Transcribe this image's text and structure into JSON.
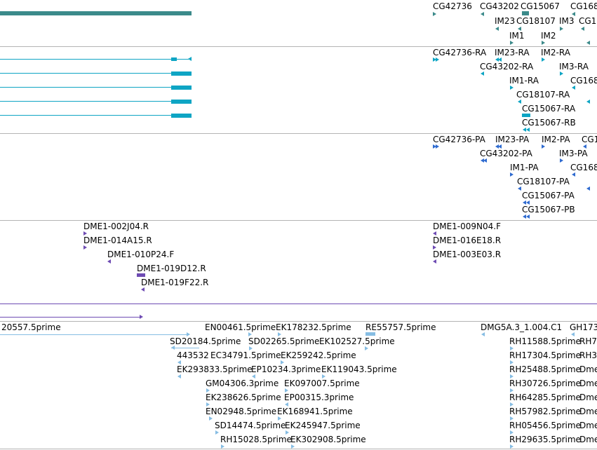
{
  "tracks": {
    "gene_symbols": {
      "labels": [
        "CG42736",
        "CG43202",
        "CG15067",
        "CG168",
        "IM23",
        "CG18107",
        "IM3",
        "CG1",
        "IM1",
        "IM2"
      ]
    },
    "transcripts": {
      "labels": [
        "CG42736-RA",
        "IM23-RA",
        "IM2-RA",
        "CG43202-RA",
        "IM3-RA",
        "IM1-RA",
        "CG168",
        "CG18107-RA",
        "CG15067-RA",
        "CG15067-RB"
      ]
    },
    "proteins": {
      "labels": [
        "CG42736-PA",
        "IM23-PA",
        "IM2-PA",
        "CG1",
        "CG43202-PA",
        "IM3-PA",
        "IM1-PA",
        "CG168",
        "CG18107-PA",
        "CG15067-PA",
        "CG15067-PB"
      ]
    },
    "ests_purple": {
      "labels": [
        "DME1-002J04.R",
        "DME1-014A15.R",
        "DME1-010P24.F",
        "DME1-019D12.R",
        "DME1-019F22.R",
        "DME1-009N04.F",
        "DME1-016E18.R",
        "DME1-003E03.R"
      ]
    },
    "ests_blue": {
      "labels": [
        "20557.5prime",
        "EN00461.5prime",
        "EK178232.5prime",
        "RE55757.5prime",
        "DMG5A.3_1.004.C1",
        "GH173",
        "SD20184.5prime",
        "SD02265.5prime",
        "EK102527.5prime",
        "RH11588.5prime",
        "RH7",
        "443532",
        "EC34791.5prime",
        "EK259242.5prime",
        "RH17304.5prime",
        "RH3",
        "EK293833.5prime",
        "EP10234.3prime",
        "EK119043.5prime",
        "RH25488.5prime",
        "Dme",
        "GM04306.3prime",
        "EK097007.5prime",
        "RH30726.5prime",
        "Dme",
        "EK238626.5prime",
        "EP00315.3prime",
        "RH64285.5prime",
        "Dme",
        "EN02948.5prime",
        "EK168941.5prime",
        "RH57982.5prime",
        "Dme",
        "SD14474.5prime",
        "EK245947.5prime",
        "RH05456.5prime",
        "Dme",
        "RH15028.5prime",
        "EK302908.5prime",
        "RH29635.5prime",
        "Dme"
      ]
    }
  },
  "colors": {
    "gene": "#3b8a8a",
    "transcript": "#0ea5c4",
    "protein": "#2f6bd0",
    "est_purple": "#6e4bb3",
    "est_blue": "#86bde3",
    "separator": "#b4b4b4"
  }
}
